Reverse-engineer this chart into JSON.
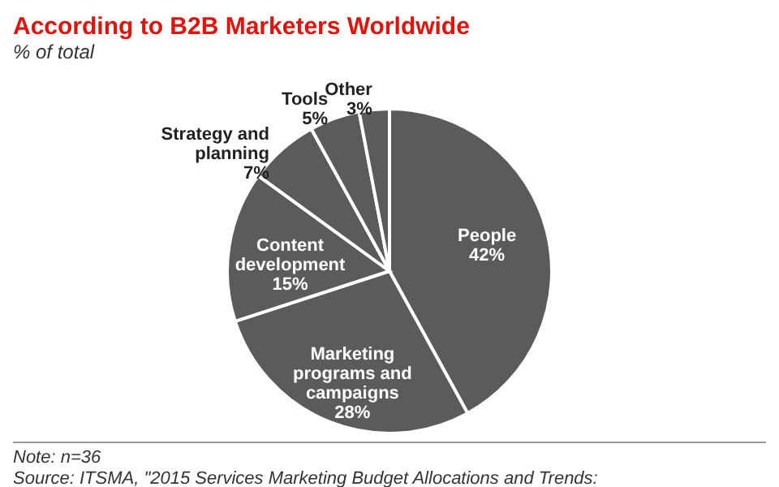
{
  "chart_data": {
    "type": "pie",
    "title": "According to B2B Marketers Worldwide",
    "subtitle": "% of total",
    "categories": [
      "People",
      "Marketing programs and campaigns",
      "Content development",
      "Strategy and planning",
      "Tools",
      "Other"
    ],
    "values": [
      42,
      28,
      15,
      7,
      5,
      3
    ],
    "value_labels": [
      "42%",
      "28%",
      "15%",
      "7%",
      "5%",
      "3%"
    ],
    "colors": [
      "#5b5b5b",
      "#5b5b5b",
      "#5b5b5b",
      "#5b5b5b",
      "#5b5b5b",
      "#5b5b5b"
    ],
    "legend": false,
    "annotations": [
      "Note: n=36",
      "Source: ITSMA, \"2015 Services Marketing Budget Allocations and Trends:"
    ]
  }
}
